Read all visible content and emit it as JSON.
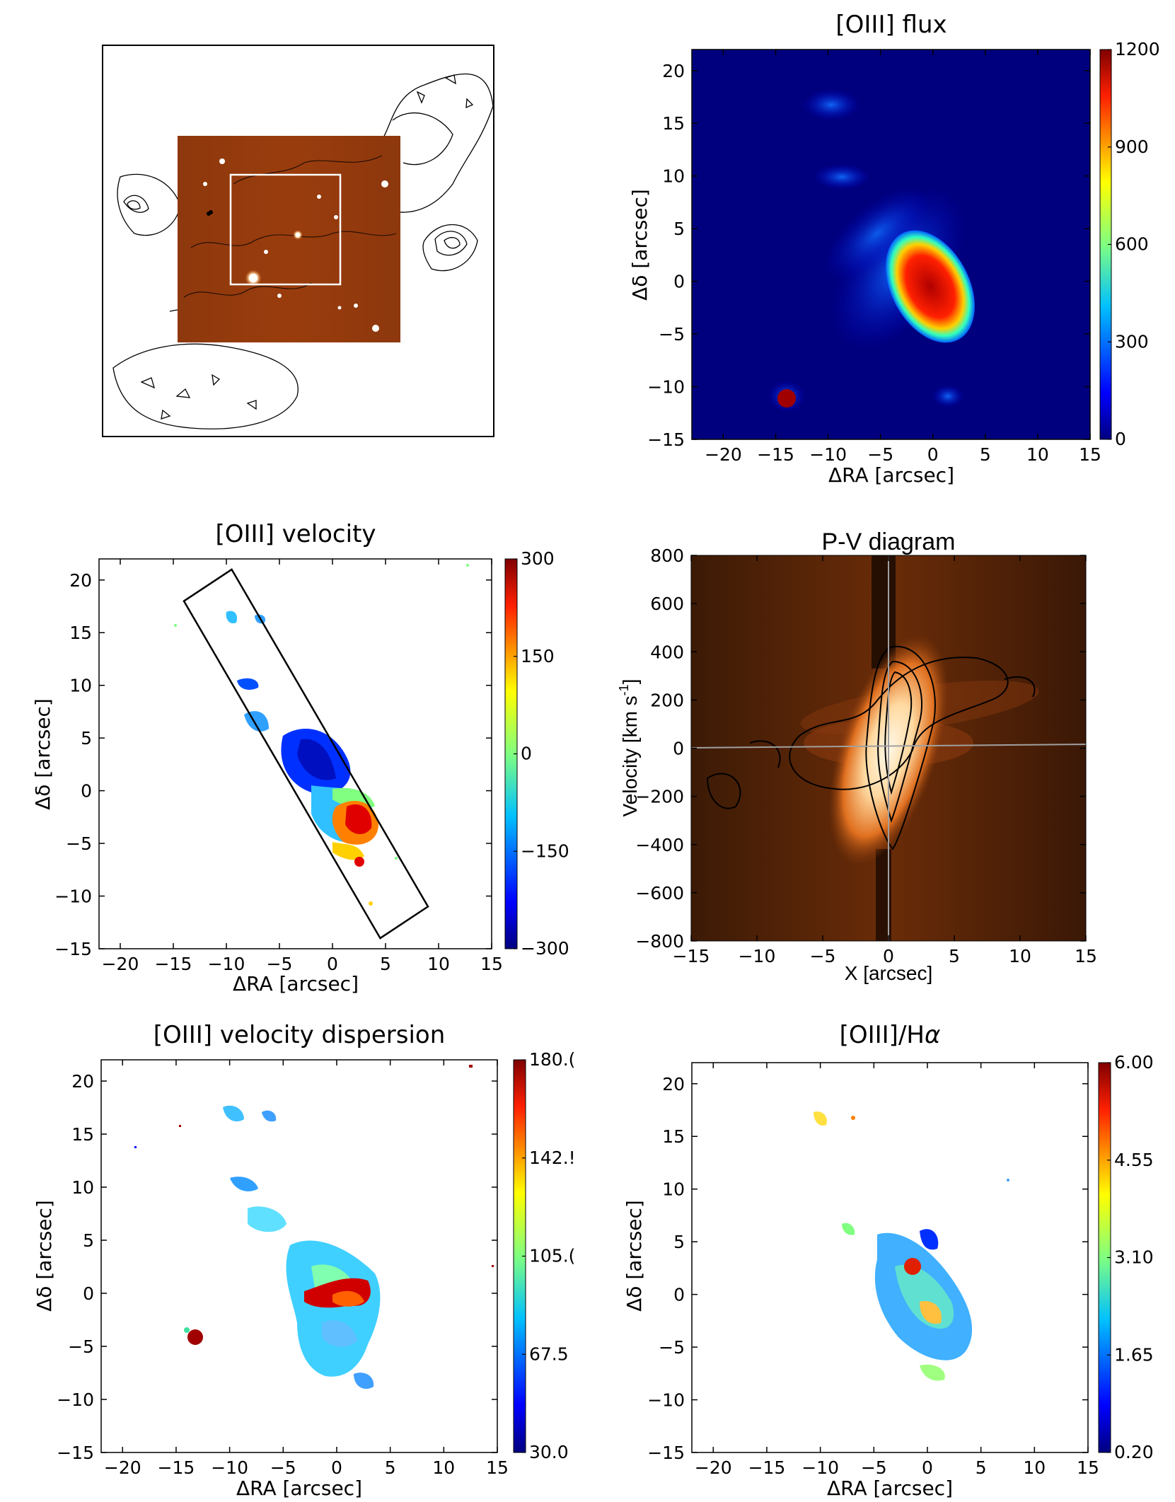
{
  "colors": {
    "jet": [
      "#00007f",
      "#0000ff",
      "#0080ff",
      "#00ffff",
      "#80ff80",
      "#ffff00",
      "#ff8000",
      "#ff0000",
      "#7f0000"
    ]
  },
  "chart_data": [
    {
      "id": "context-image",
      "type": "image",
      "title": "",
      "description_only": true
    },
    {
      "id": "oiii-flux",
      "type": "heatmap",
      "title": "[OIII] flux",
      "xlabel": "ΔRA [arcsec]",
      "ylabel": "Δδ [arcsec]",
      "xlim": [
        -23,
        15
      ],
      "ylim": [
        -15,
        22
      ],
      "xticks": [
        -20,
        -15,
        -10,
        -5,
        0,
        5,
        10,
        15
      ],
      "yticks": [
        -15,
        -10,
        -5,
        0,
        5,
        10,
        15,
        20
      ],
      "colorbar": {
        "min": 0,
        "max": 1200,
        "ticks": [
          "0",
          "300",
          "600",
          "900",
          "1200"
        ]
      }
    },
    {
      "id": "oiii-velocity",
      "type": "heatmap",
      "title": "[OIII] velocity",
      "xlabel": "ΔRA [arcsec]",
      "ylabel": "Δδ [arcsec]",
      "xlim": [
        -22,
        15
      ],
      "ylim": [
        -15,
        22
      ],
      "xticks": [
        -20,
        -15,
        -10,
        -5,
        0,
        5,
        10,
        15
      ],
      "yticks": [
        -15,
        -10,
        -5,
        0,
        5,
        10,
        15,
        20
      ],
      "colorbar": {
        "min": -300,
        "max": 300,
        "ticks": [
          "−300",
          "−150",
          "0",
          "150",
          "300"
        ]
      },
      "slit": [
        [
          -14,
          18
        ],
        [
          -9.5,
          21
        ],
        [
          9,
          -11
        ],
        [
          4.5,
          -14
        ]
      ]
    },
    {
      "id": "pv-diagram",
      "type": "heatmap",
      "title": "P-V diagram",
      "xlabel": "X [arcsec]",
      "ylabel": "Velocity [km s",
      "ylabel_sup": "-1",
      "ylabel_end": "]",
      "xlim": [
        -15,
        15
      ],
      "ylim": [
        -800,
        800
      ],
      "xticks": [
        "−15",
        "−10",
        "−5",
        "0",
        "5",
        "10",
        "15"
      ],
      "yticks": [
        "−800",
        "−600",
        "−400",
        "−200",
        "0",
        "200",
        "400",
        "600",
        "800"
      ]
    },
    {
      "id": "oiii-dispersion",
      "type": "heatmap",
      "title": "[OIII] velocity dispersion",
      "xlabel": "ΔRA [arcsec]",
      "ylabel": "Δδ [arcsec]",
      "xlim": [
        -22,
        15
      ],
      "ylim": [
        -15,
        22
      ],
      "xticks": [
        -20,
        -15,
        -10,
        -5,
        0,
        5,
        10,
        15
      ],
      "yticks": [
        -15,
        -10,
        -5,
        0,
        5,
        10,
        15,
        20
      ],
      "colorbar": {
        "min": 30,
        "max": 180,
        "ticks": [
          "30.0",
          "67.5",
          "105.(",
          "142.!",
          "180.("
        ]
      }
    },
    {
      "id": "oiii-halpha",
      "type": "heatmap",
      "title": "[OIII]/H",
      "title_symbol": "α",
      "xlabel": "ΔRA [arcsec]",
      "ylabel": "Δδ [arcsec]",
      "xlim": [
        -22,
        15
      ],
      "ylim": [
        -15,
        22
      ],
      "xticks": [
        -20,
        -15,
        -10,
        -5,
        0,
        5,
        10,
        15
      ],
      "yticks": [
        -15,
        -10,
        -5,
        0,
        5,
        10,
        15,
        20
      ],
      "colorbar": {
        "min": 0.2,
        "max": 6.0,
        "ticks": [
          "0.20",
          "1.65",
          "3.10",
          "4.55",
          "6.00"
        ]
      }
    }
  ]
}
